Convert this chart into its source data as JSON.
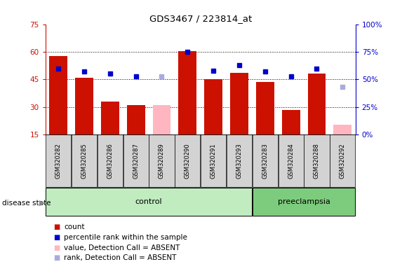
{
  "title": "GDS3467 / 223814_at",
  "samples": [
    "GSM320282",
    "GSM320285",
    "GSM320286",
    "GSM320287",
    "GSM320289",
    "GSM320290",
    "GSM320291",
    "GSM320293",
    "GSM320283",
    "GSM320284",
    "GSM320288",
    "GSM320292"
  ],
  "group": [
    "control",
    "control",
    "control",
    "control",
    "control",
    "control",
    "control",
    "control",
    "preeclampsia",
    "preeclampsia",
    "preeclampsia",
    "preeclampsia"
  ],
  "absent": [
    false,
    false,
    false,
    false,
    true,
    false,
    false,
    false,
    false,
    false,
    false,
    true
  ],
  "count": [
    57.5,
    46.0,
    33.0,
    31.0,
    31.0,
    60.5,
    45.0,
    48.5,
    43.5,
    28.5,
    48.0,
    20.5
  ],
  "percentile": [
    60.0,
    57.0,
    55.0,
    53.0,
    53.0,
    75.0,
    58.0,
    63.0,
    57.0,
    53.0,
    60.0,
    43.0
  ],
  "ylim_left": [
    15,
    75
  ],
  "ylim_right": [
    0,
    100
  ],
  "yticks_left": [
    15,
    30,
    45,
    60,
    75
  ],
  "yticks_right": [
    0,
    25,
    50,
    75,
    100
  ],
  "bar_color_present": "#cc1100",
  "bar_color_absent": "#ffb6c1",
  "dot_color_present": "#0000cc",
  "dot_color_absent": "#aaaadd",
  "control_bg_light": "#d8f5d8",
  "control_bg": "#c0ecc0",
  "preeclampsia_bg": "#7dcc7d",
  "sample_bg": "#d3d3d3",
  "legend_items": [
    "count",
    "percentile rank within the sample",
    "value, Detection Call = ABSENT",
    "rank, Detection Call = ABSENT"
  ],
  "legend_colors": [
    "#cc1100",
    "#0000cc",
    "#ffb6c1",
    "#aaaadd"
  ],
  "grid_lines": [
    30,
    45,
    60
  ],
  "bar_width": 0.7
}
